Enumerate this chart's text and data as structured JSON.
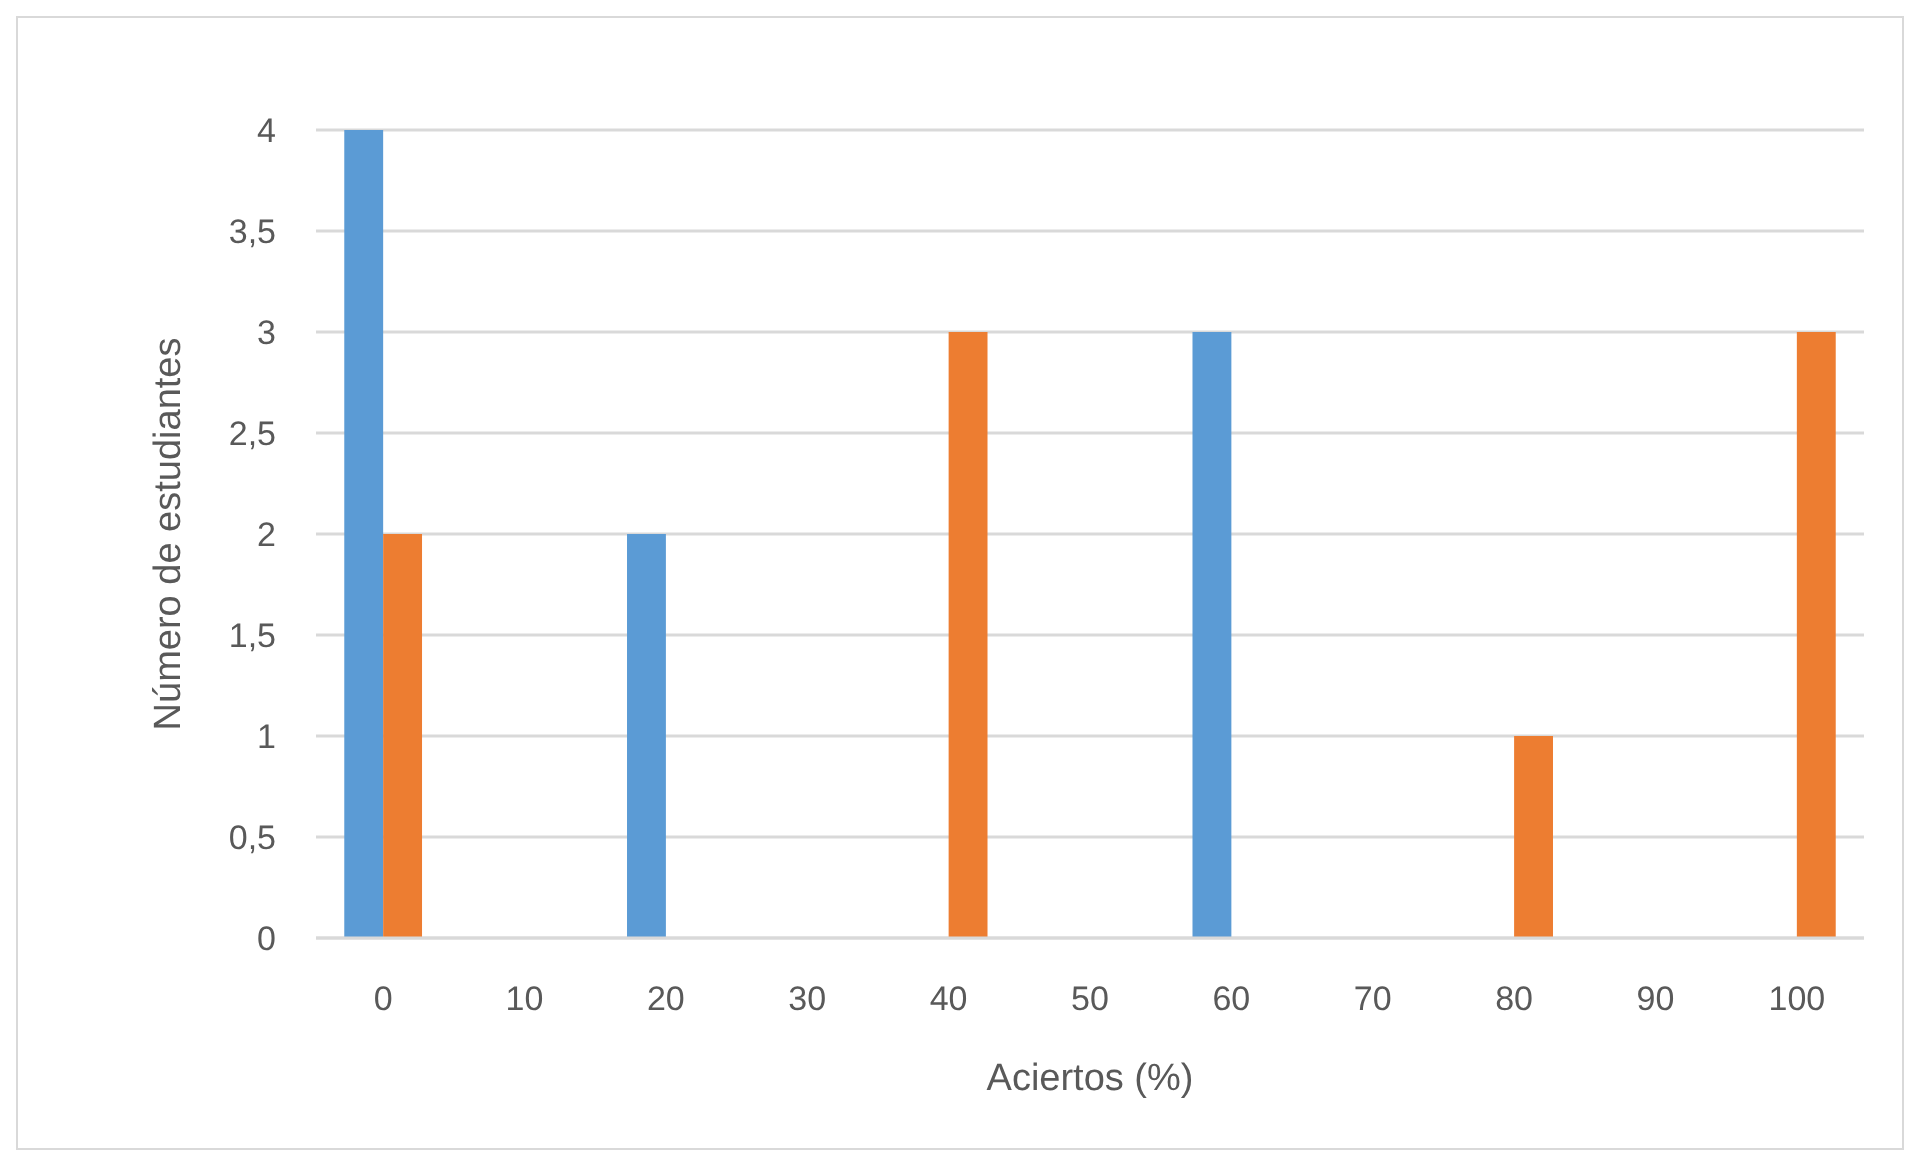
{
  "chart_data": {
    "type": "bar",
    "xlabel": "Aciertos (%)",
    "ylabel": "Número de estudiantes",
    "categories": [
      "0",
      "10",
      "20",
      "30",
      "40",
      "50",
      "60",
      "70",
      "80",
      "90",
      "100"
    ],
    "series": [
      {
        "color": "#5b9bd5",
        "values": [
          4,
          0,
          2,
          0,
          0,
          0,
          3,
          0,
          0,
          0,
          0
        ]
      },
      {
        "color": "#ed7d31",
        "values": [
          2,
          0,
          0,
          0,
          3,
          0,
          0,
          0,
          1,
          0,
          3
        ]
      }
    ],
    "ylim": [
      0,
      4
    ],
    "yticks": [
      0,
      {
        "value": 0.5,
        "label": "0,5"
      },
      1,
      {
        "value": 1.5,
        "label": "1,5"
      },
      2,
      {
        "value": 2.5,
        "label": "2,5"
      },
      3,
      {
        "value": 3.5,
        "label": "3,5"
      },
      4
    ],
    "grid": "y"
  }
}
